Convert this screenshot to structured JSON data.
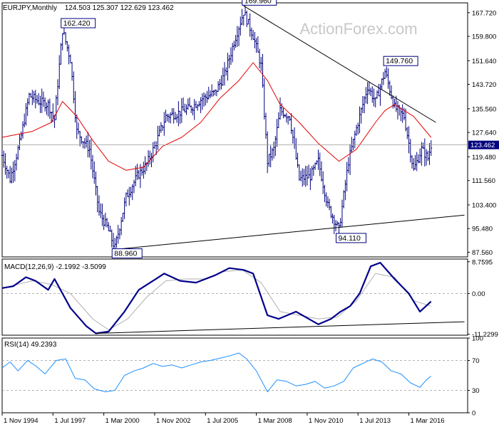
{
  "header": {
    "symbol": "EURJPY,Monthly",
    "ohlc": "124.503 125.307 122.629 123.462"
  },
  "watermark": "ActionForex.com",
  "colors": {
    "price": "#00007f",
    "ma": "#e00000",
    "trendline": "#000000",
    "macd_main": "#00008b",
    "macd_signal": "#b0b0b0",
    "rsi": "#1e90ff",
    "grid_level": "#999999",
    "current_box": "#00007f"
  },
  "chart_data": [
    {
      "type": "bar",
      "title": "EURJPY,Monthly",
      "ohlc_label": "124.503 125.307 122.629 123.462",
      "y_ticks": [
        "167.720",
        "159.800",
        "151.640",
        "143.720",
        "135.560",
        "127.640",
        "119.480",
        "111.560",
        "103.400",
        "95.480",
        "87.560"
      ],
      "ylim": [
        86.0,
        171.0
      ],
      "current_price": "123.462",
      "annotations": [
        {
          "label": "162.420",
          "date": "1998-01",
          "value": 162.42
        },
        {
          "label": "169.960",
          "date": "2007-07",
          "value": 169.96
        },
        {
          "label": "149.760",
          "date": "2014-12",
          "value": 149.76
        },
        {
          "label": "88.960",
          "date": "2000-10",
          "value": 88.96
        },
        {
          "label": "94.110",
          "date": "2012-07",
          "value": 94.11
        }
      ],
      "price_path": [
        [
          "1994-11",
          120
        ],
        [
          "1995-04",
          112
        ],
        [
          "1995-10",
          124
        ],
        [
          "1996-04",
          140
        ],
        [
          "1996-10",
          138
        ],
        [
          "1997-04",
          137
        ],
        [
          "1997-08",
          132
        ],
        [
          "1998-01",
          162
        ],
        [
          "1998-06",
          152
        ],
        [
          "1998-10",
          128
        ],
        [
          "1999-06",
          122
        ],
        [
          "1999-12",
          101
        ],
        [
          "2000-05",
          96
        ],
        [
          "2000-10",
          89
        ],
        [
          "2001-05",
          106
        ],
        [
          "2001-12",
          113
        ],
        [
          "2002-06",
          117
        ],
        [
          "2002-11",
          123
        ],
        [
          "2003-06",
          133
        ],
        [
          "2004-01",
          134
        ],
        [
          "2004-10",
          136
        ],
        [
          "2005-05",
          139
        ],
        [
          "2006-01",
          141
        ],
        [
          "2006-07",
          147
        ],
        [
          "2007-01",
          158
        ],
        [
          "2007-07",
          168
        ],
        [
          "2008-01",
          160
        ],
        [
          "2008-06",
          150
        ],
        [
          "2008-10",
          118
        ],
        [
          "2009-02",
          122
        ],
        [
          "2009-06",
          135
        ],
        [
          "2009-12",
          133
        ],
        [
          "2010-06",
          112
        ],
        [
          "2011-01",
          113
        ],
        [
          "2011-06",
          118
        ],
        [
          "2011-12",
          103
        ],
        [
          "2012-07",
          95
        ],
        [
          "2013-01",
          118
        ],
        [
          "2013-06",
          129
        ],
        [
          "2014-01",
          143
        ],
        [
          "2014-06",
          138
        ],
        [
          "2014-12",
          148
        ],
        [
          "2015-06",
          136
        ],
        [
          "2015-12",
          133
        ],
        [
          "2016-06",
          115
        ],
        [
          "2016-11",
          122
        ],
        [
          "2017-03",
          119
        ],
        [
          "2017-05",
          123.5
        ]
      ],
      "ma_path": [
        [
          "1994-11",
          126
        ],
        [
          "1996-06",
          128
        ],
        [
          "1997-06",
          131
        ],
        [
          "1998-01",
          138
        ],
        [
          "1998-10",
          133
        ],
        [
          "1999-08",
          125
        ],
        [
          "2000-06",
          118
        ],
        [
          "2001-05",
          115
        ],
        [
          "2002-04",
          116
        ],
        [
          "2003-04",
          123
        ],
        [
          "2004-04",
          126
        ],
        [
          "2005-04",
          131
        ],
        [
          "2006-04",
          139
        ],
        [
          "2007-04",
          145
        ],
        [
          "2008-01",
          151
        ],
        [
          "2008-10",
          145
        ],
        [
          "2009-06",
          137
        ],
        [
          "2010-06",
          131
        ],
        [
          "2011-06",
          124
        ],
        [
          "2012-07",
          118
        ],
        [
          "2013-06",
          122
        ],
        [
          "2014-06",
          131
        ],
        [
          "2014-12",
          135
        ],
        [
          "2015-06",
          137
        ],
        [
          "2016-06",
          133
        ],
        [
          "2017-05",
          126
        ]
      ],
      "trendlines": [
        {
          "from": [
            "2007-07",
            170
          ],
          "to": [
            "2017-08",
            131
          ]
        },
        {
          "from": [
            "2000-10",
            88.5
          ],
          "to": [
            "2019-02",
            100
          ]
        }
      ]
    },
    {
      "type": "line",
      "title": "MACD(12,26,9) -2.1992 -3.5099",
      "y_ticks": [
        "8.7595",
        "0.00",
        "-11.2299"
      ],
      "ylim": [
        -11.5,
        9.5
      ],
      "zero_line": 0,
      "series": [
        {
          "role": "main",
          "points": [
            [
              "1994-11",
              1.5
            ],
            [
              "1995-06",
              2
            ],
            [
              "1996-02",
              4.5
            ],
            [
              "1996-08",
              3.5
            ],
            [
              "1997-04",
              1
            ],
            [
              "1997-08",
              4
            ],
            [
              "1998-06",
              -4
            ],
            [
              "1999-04",
              -9
            ],
            [
              "1999-10",
              -11
            ],
            [
              "2000-06",
              -10.5
            ],
            [
              "2001-04",
              -5
            ],
            [
              "2002-01",
              1
            ],
            [
              "2002-10",
              3.5
            ],
            [
              "2003-05",
              5.5
            ],
            [
              "2004-03",
              3.5
            ],
            [
              "2005-01",
              3
            ],
            [
              "2006-01",
              5
            ],
            [
              "2006-10",
              7
            ],
            [
              "2007-07",
              6.5
            ],
            [
              "2008-01",
              5.5
            ],
            [
              "2008-10",
              -6
            ],
            [
              "2009-05",
              -7
            ],
            [
              "2010-04",
              -5
            ],
            [
              "2011-06",
              -8.5
            ],
            [
              "2012-02",
              -7
            ],
            [
              "2012-08",
              -5
            ],
            [
              "2013-02",
              -3.5
            ],
            [
              "2013-08",
              0
            ],
            [
              "2014-03",
              7.5
            ],
            [
              "2014-09",
              8.5
            ],
            [
              "2015-06",
              4
            ],
            [
              "2016-03",
              0
            ],
            [
              "2016-10",
              -5
            ],
            [
              "2017-05",
              -2.2
            ]
          ]
        },
        {
          "role": "signal",
          "points": [
            [
              "1994-11",
              1.5
            ],
            [
              "1996-06",
              3.5
            ],
            [
              "1997-06",
              2.5
            ],
            [
              "1998-06",
              0
            ],
            [
              "1999-08",
              -7
            ],
            [
              "2000-06",
              -10
            ],
            [
              "2001-06",
              -7
            ],
            [
              "2002-06",
              -1
            ],
            [
              "2003-06",
              3.5
            ],
            [
              "2004-06",
              4
            ],
            [
              "2005-06",
              4
            ],
            [
              "2006-06",
              6
            ],
            [
              "2007-06",
              6.5
            ],
            [
              "2008-06",
              3
            ],
            [
              "2009-06",
              -5
            ],
            [
              "2010-06",
              -6
            ],
            [
              "2011-06",
              -7
            ],
            [
              "2012-06",
              -6.5
            ],
            [
              "2013-06",
              -2
            ],
            [
              "2014-06",
              5.5
            ],
            [
              "2015-06",
              4.5
            ],
            [
              "2016-06",
              -2
            ],
            [
              "2017-05",
              -3.5
            ]
          ]
        }
      ],
      "trendline": {
        "from": [
          "1999-10",
          -11
        ],
        "to": [
          "2019-02",
          -7.8
        ]
      }
    },
    {
      "type": "line",
      "title": "RSI(14) 49.2393",
      "y_ticks": [
        "100",
        "70",
        "30",
        "0"
      ],
      "ylim": [
        0,
        100
      ],
      "levels": [
        70,
        30
      ],
      "series": [
        {
          "role": "rsi",
          "points": [
            [
              "1994-11",
              60
            ],
            [
              "1995-04",
              68
            ],
            [
              "1995-09",
              56
            ],
            [
              "1996-03",
              70
            ],
            [
              "1996-08",
              63
            ],
            [
              "1997-02",
              52
            ],
            [
              "1997-09",
              70
            ],
            [
              "1998-03",
              72
            ],
            [
              "1998-09",
              46
            ],
            [
              "1999-03",
              44
            ],
            [
              "1999-09",
              32
            ],
            [
              "2000-04",
              28
            ],
            [
              "2000-10",
              30
            ],
            [
              "2001-04",
              50
            ],
            [
              "2001-10",
              56
            ],
            [
              "2002-04",
              60
            ],
            [
              "2002-10",
              66
            ],
            [
              "2003-04",
              62
            ],
            [
              "2003-10",
              64
            ],
            [
              "2004-04",
              60
            ],
            [
              "2004-10",
              64
            ],
            [
              "2005-04",
              68
            ],
            [
              "2005-10",
              70
            ],
            [
              "2006-04",
              73
            ],
            [
              "2006-10",
              76
            ],
            [
              "2007-04",
              80
            ],
            [
              "2007-09",
              72
            ],
            [
              "2008-03",
              56
            ],
            [
              "2008-10",
              28
            ],
            [
              "2009-04",
              44
            ],
            [
              "2009-10",
              42
            ],
            [
              "2010-04",
              36
            ],
            [
              "2010-10",
              38
            ],
            [
              "2011-04",
              42
            ],
            [
              "2011-10",
              33
            ],
            [
              "2012-04",
              36
            ],
            [
              "2012-10",
              42
            ],
            [
              "2013-04",
              60
            ],
            [
              "2013-10",
              66
            ],
            [
              "2014-04",
              72
            ],
            [
              "2014-10",
              68
            ],
            [
              "2015-04",
              56
            ],
            [
              "2015-10",
              52
            ],
            [
              "2016-04",
              40
            ],
            [
              "2016-10",
              34
            ],
            [
              "2017-02",
              44
            ],
            [
              "2017-05",
              49
            ]
          ]
        }
      ]
    }
  ],
  "x_axis": {
    "labels": [
      {
        "text": "1 Nov 1994",
        "date": "1994-11"
      },
      {
        "text": "1 Jul 1997",
        "date": "1997-07"
      },
      {
        "text": "1 Mar 2000",
        "date": "2000-03"
      },
      {
        "text": "1 Nov 2002",
        "date": "2002-11"
      },
      {
        "text": "1 Jul 2005",
        "date": "2005-07"
      },
      {
        "text": "1 Mar 2008",
        "date": "2008-03"
      },
      {
        "text": "1 Nov 2010",
        "date": "2010-11"
      },
      {
        "text": "1 Jul 2013",
        "date": "2013-07"
      },
      {
        "text": "1 Mar 2016",
        "date": "2016-03"
      }
    ]
  }
}
